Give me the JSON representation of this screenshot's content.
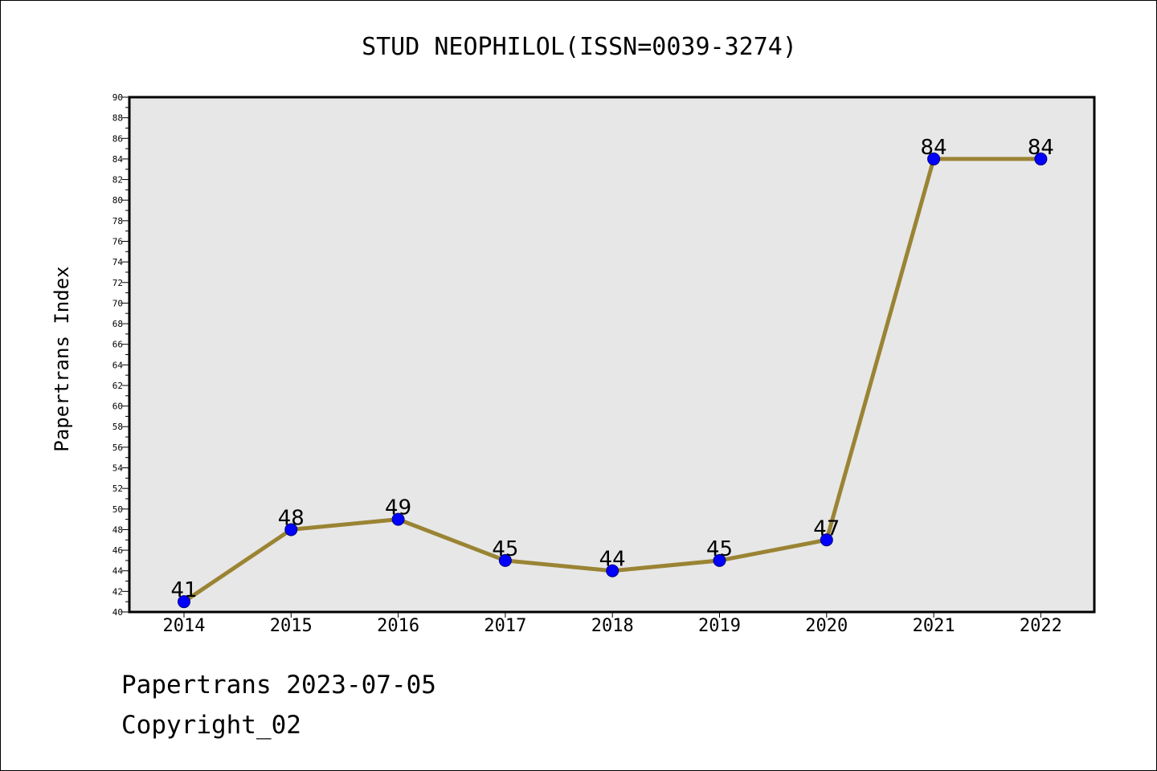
{
  "chart_data": {
    "type": "line",
    "title": "STUD NEOPHILOL(ISSN=0039-3274)",
    "ylabel": "Papertrans Index",
    "xlabel": "",
    "categories": [
      "2014",
      "2015",
      "2016",
      "2017",
      "2018",
      "2019",
      "2020",
      "2021",
      "2022"
    ],
    "series": [
      {
        "values": [
          41,
          48,
          49,
          45,
          44,
          45,
          47,
          84,
          84
        ]
      }
    ],
    "ylim": [
      40,
      90
    ],
    "ytick_step": 2,
    "grid": false,
    "data_labels": true,
    "colors": {
      "line": "#9a8434",
      "marker": "#0000ff",
      "plot_background": "#e7e7e7"
    }
  },
  "footer": {
    "line1": "Papertrans 2023-07-05",
    "line2": "Copyright_02"
  }
}
